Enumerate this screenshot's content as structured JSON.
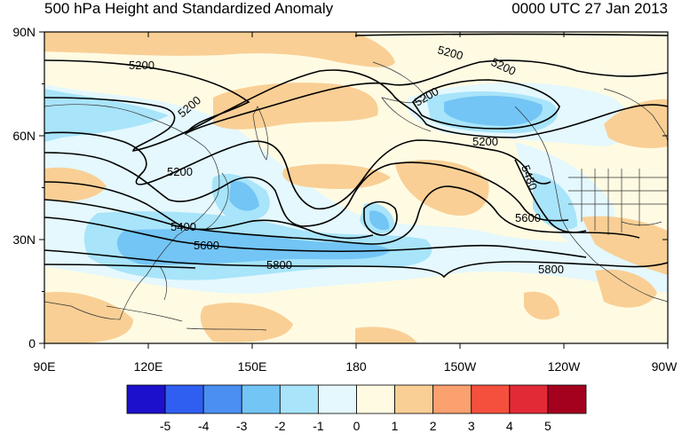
{
  "title_left": "500 hPa Height and Standardized Anomaly",
  "title_right": "0000 UTC 27 Jan 2013",
  "lat_labels": [
    "90N",
    "60N",
    "30N",
    "0"
  ],
  "lon_labels": [
    "90E",
    "120E",
    "150E",
    "180",
    "150W",
    "120W",
    "90W"
  ],
  "contour_labels": [
    "5200",
    "5200",
    "5200",
    "5200",
    "5200",
    "5200",
    "5400",
    "5480",
    "5600",
    "5600",
    "5800",
    "5800"
  ],
  "colorbar": {
    "labels": [
      "-5",
      "-4",
      "-3",
      "-2",
      "-1",
      "0",
      "1",
      "2",
      "3",
      "4",
      "5"
    ],
    "colors": [
      "#1c10cc",
      "#2f5ff0",
      "#4b8ff2",
      "#73c5f5",
      "#a8e4fa",
      "#e4f8fd",
      "#fffbe3",
      "#f9cf95",
      "#fba06f",
      "#f5503e",
      "#e22a37",
      "#a4011f"
    ]
  },
  "anomaly_colors": {
    "weak_negative": "#e4f8fd",
    "moderate_negative": "#a8e4fa",
    "strong_negative": "#73c5f5",
    "weak_positive": "#fffbe3",
    "moderate_positive": "#f9cf95"
  }
}
